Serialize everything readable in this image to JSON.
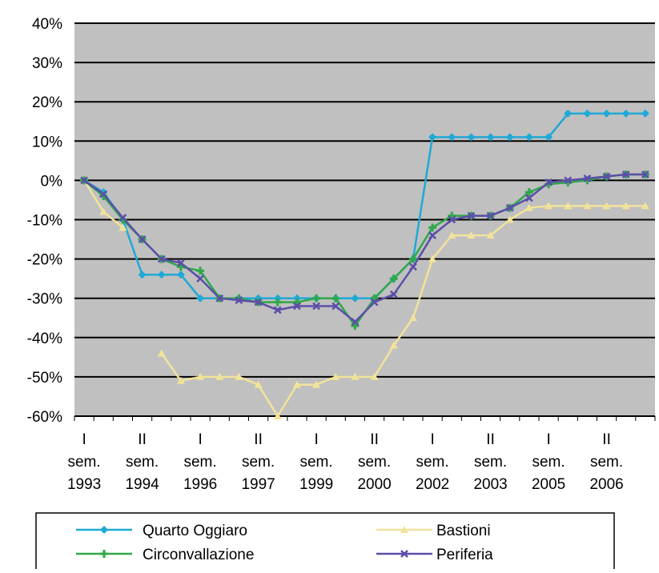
{
  "chart_data": {
    "type": "line",
    "categories": [
      "I sem. 1993",
      null,
      null,
      "II sem. 1994",
      null,
      null,
      "I sem. 1996",
      null,
      null,
      "II sem. 1997",
      null,
      null,
      "I sem. 1999",
      null,
      null,
      "II sem. 2000",
      null,
      null,
      "I sem. 2002",
      null,
      null,
      "II sem. 2003",
      null,
      null,
      "I sem. 2005",
      null,
      null,
      "II sem. 2006",
      null,
      null
    ],
    "series": [
      {
        "name": "Quarto Oggiaro",
        "color": "#1fa9d6",
        "values": [
          0,
          -3,
          -10,
          -24,
          -24,
          -24,
          -30,
          -30,
          -30,
          -30,
          -30,
          -30,
          -30,
          -30,
          -30,
          -30,
          -25,
          -20,
          11,
          11,
          11,
          11,
          11,
          11,
          11,
          17,
          17,
          17,
          17,
          17
        ]
      },
      {
        "name": "Bastioni",
        "color": "#f2e39a",
        "values": [
          0,
          -8,
          -12,
          null,
          -44,
          -51,
          -50,
          -50,
          -50,
          -52,
          -60,
          -52,
          -52,
          -50,
          -50,
          -50,
          -42,
          -35,
          -20,
          -14,
          -14,
          -14,
          -10,
          -7,
          -6.5,
          -6.5,
          -6.5,
          -6.5,
          -6.5,
          -6.5
        ]
      },
      {
        "name": "Circonvallazione",
        "color": "#2fa84a",
        "values": [
          0,
          -4,
          -10,
          -15,
          -20,
          -22,
          -23,
          -30,
          -30,
          -31,
          -31,
          -31,
          -30,
          -30,
          -37,
          -30,
          -25,
          -20,
          -12,
          -9,
          -9,
          -9,
          -7,
          -3,
          -1,
          -0.5,
          0,
          1,
          1.5,
          1.5
        ]
      },
      {
        "name": "Periferia",
        "color": "#5b4fa8",
        "values": [
          0,
          -3.5,
          -9.5,
          -15,
          -20,
          -21,
          -25,
          -30,
          -30.5,
          -31,
          -33,
          -32,
          -32,
          -32,
          -36,
          -31,
          -29,
          -22,
          -14,
          -10,
          -9,
          -9,
          -7,
          -4.5,
          -0.5,
          0,
          0.5,
          1,
          1.5,
          1.5
        ]
      }
    ],
    "ylim": [
      -60,
      40
    ],
    "yticks": [
      {
        "value": -60,
        "label": "-60%"
      },
      {
        "value": -50,
        "label": "-50%"
      },
      {
        "value": -40,
        "label": "-40%"
      },
      {
        "value": -30,
        "label": "-30%"
      },
      {
        "value": -20,
        "label": "-20%"
      },
      {
        "value": -10,
        "label": "-10%"
      },
      {
        "value": 0,
        "label": "0%"
      },
      {
        "value": 10,
        "label": "10%"
      },
      {
        "value": 20,
        "label": "20%"
      },
      {
        "value": 30,
        "label": "30%"
      },
      {
        "value": 40,
        "label": "40%"
      }
    ],
    "grid": true
  }
}
